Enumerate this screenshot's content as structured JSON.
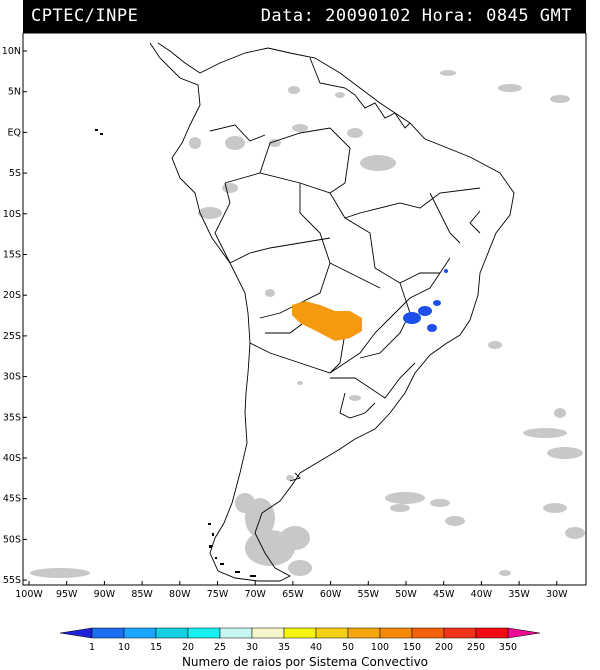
{
  "header": {
    "source": "CPTEC/INPE",
    "datetime": "Data: 20090102 Hora: 0845 GMT"
  },
  "map": {
    "lat_labels": [
      "10N",
      "5N",
      "EQ",
      "5S",
      "10S",
      "15S",
      "20S",
      "25S",
      "30S",
      "35S",
      "40S",
      "45S",
      "50S",
      "55S"
    ],
    "lon_labels": [
      "100W",
      "95W",
      "90W",
      "85W",
      "80W",
      "75W",
      "70W",
      "65W",
      "60W",
      "55W",
      "50W",
      "45W",
      "40W",
      "35W",
      "30W"
    ]
  },
  "colorbar": {
    "values": [
      "1",
      "10",
      "15",
      "20",
      "25",
      "30",
      "35",
      "40",
      "50",
      "100",
      "150",
      "200",
      "250",
      "350"
    ],
    "colors": [
      "#1f22d6",
      "#1b6ef0",
      "#1aa6ff",
      "#12d0e0",
      "#18f0f0",
      "#c6f5f2",
      "#f4f5c8",
      "#f6f30c",
      "#f5cf14",
      "#f5a50e",
      "#f68a08",
      "#f4600a",
      "#f2321a",
      "#f30a12",
      "#ec0a90"
    ],
    "label": "Numero de raios por Sistema Convectivo"
  },
  "legend_colors": {
    "cloud": "#c8c8c8",
    "orange_system": "#f59a10",
    "blue_system": "#1c50e8"
  }
}
